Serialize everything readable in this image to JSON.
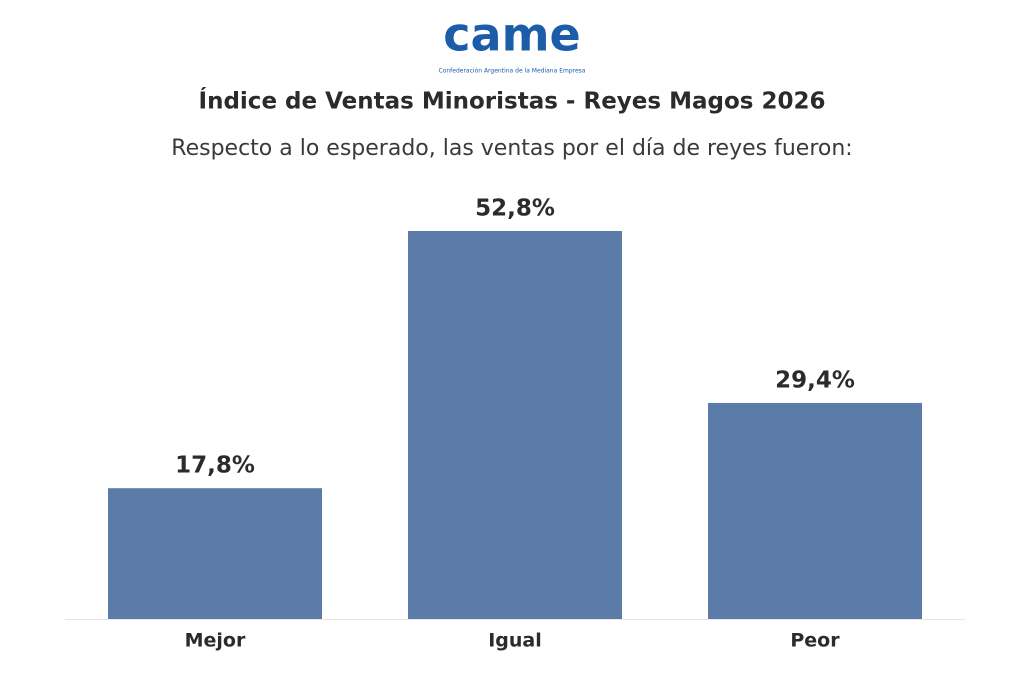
{
  "logo": {
    "name": "came",
    "caption": "Confederación Argentina de la Mediana Empresa"
  },
  "chart_data": {
    "type": "bar",
    "title": "Índice de Ventas Minoristas - Reyes Magos 2026",
    "subtitle": "Respecto a lo esperado, las ventas por el día de reyes fueron:",
    "categories": [
      "Mejor",
      "Igual",
      "Peor"
    ],
    "values": [
      17.8,
      52.8,
      29.4
    ],
    "value_labels": [
      "17,8%",
      "52,8%",
      "29,4%"
    ],
    "color": "#5b7ba8"
  }
}
